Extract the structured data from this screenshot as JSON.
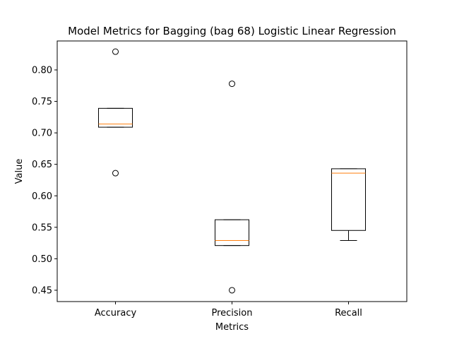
{
  "chart_data": {
    "type": "box",
    "title": "Model Metrics for Bagging (bag 68) Logistic Linear Regression",
    "xlabel": "Metrics",
    "ylabel": "Value",
    "ylim": [
      0.432,
      0.846
    ],
    "yticks": [
      "0.45",
      "0.50",
      "0.55",
      "0.60",
      "0.65",
      "0.70",
      "0.75",
      "0.80"
    ],
    "categories": [
      "Accuracy",
      "Precision",
      "Recall"
    ],
    "boxes": [
      {
        "name": "Accuracy",
        "whisker_low": 0.709,
        "q1": 0.709,
        "median": 0.714,
        "q3": 0.739,
        "whisker_high": 0.739,
        "outliers": [
          0.829,
          0.636
        ]
      },
      {
        "name": "Precision",
        "whisker_low": 0.521,
        "q1": 0.521,
        "median": 0.529,
        "q3": 0.562,
        "whisker_high": 0.562,
        "outliers": [
          0.778,
          0.45
        ]
      },
      {
        "name": "Recall",
        "whisker_low": 0.529,
        "q1": 0.545,
        "median": 0.636,
        "q3": 0.643,
        "whisker_high": 0.643,
        "outliers": []
      }
    ],
    "colors": {
      "box": "#000000",
      "median": "#ff7f0e",
      "outlier": "#000000",
      "background": "#ffffff"
    },
    "grid": false,
    "legend": "none"
  }
}
